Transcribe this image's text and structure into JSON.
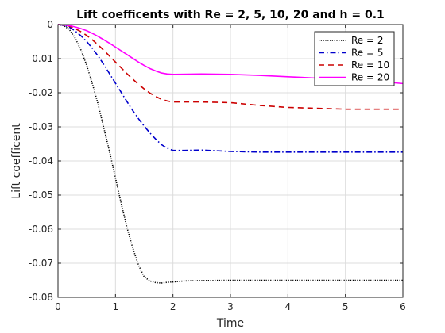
{
  "chart_data": {
    "type": "line",
    "title": "Lift coefficents with Re = 2, 5, 10, 20 and h = 0.1",
    "xlabel": "Time",
    "ylabel": "Lift coefficent",
    "xlim": [
      0,
      6
    ],
    "ylim": [
      -0.08,
      0
    ],
    "xticks": [
      0,
      1,
      2,
      3,
      4,
      5,
      6
    ],
    "xtick_labels": [
      "0",
      "1",
      "2",
      "3",
      "4",
      "5",
      "6"
    ],
    "yticks": [
      0,
      -0.01,
      -0.02,
      -0.03,
      -0.04,
      -0.05,
      -0.06,
      -0.07,
      -0.08
    ],
    "ytick_labels": [
      "0",
      "-0.01",
      "-0.02",
      "-0.03",
      "-0.04",
      "-0.05",
      "-0.06",
      "-0.07",
      "-0.08"
    ],
    "grid": true,
    "legend_position": "top-right",
    "series": [
      {
        "name": "Re = 2",
        "color": "#000000",
        "style": "dotted",
        "x": [
          0,
          0.1,
          0.2,
          0.3,
          0.4,
          0.5,
          0.6,
          0.7,
          0.8,
          0.9,
          1.0,
          1.1,
          1.2,
          1.3,
          1.4,
          1.5,
          1.6,
          1.7,
          1.8,
          1.9,
          2.0,
          2.2,
          2.5,
          3.0,
          4.0,
          5.0,
          6.0
        ],
        "y": [
          0,
          -0.0003,
          -0.0015,
          -0.004,
          -0.0075,
          -0.012,
          -0.0175,
          -0.0235,
          -0.0305,
          -0.0375,
          -0.045,
          -0.0525,
          -0.0595,
          -0.0655,
          -0.0705,
          -0.074,
          -0.0752,
          -0.0757,
          -0.0758,
          -0.0756,
          -0.0755,
          -0.0752,
          -0.0751,
          -0.075,
          -0.075,
          -0.075,
          -0.075
        ]
      },
      {
        "name": "Re = 5",
        "color": "#0000cc",
        "style": "dashdot",
        "x": [
          0,
          0.1,
          0.2,
          0.3,
          0.4,
          0.5,
          0.6,
          0.7,
          0.8,
          0.9,
          1.0,
          1.1,
          1.2,
          1.3,
          1.4,
          1.5,
          1.6,
          1.7,
          1.8,
          1.9,
          2.0,
          2.2,
          2.5,
          3.0,
          3.5,
          4.0,
          5.0,
          6.0
        ],
        "y": [
          0,
          -0.0002,
          -0.0008,
          -0.0019,
          -0.0033,
          -0.005,
          -0.007,
          -0.0093,
          -0.0118,
          -0.0145,
          -0.0172,
          -0.0199,
          -0.0226,
          -0.0252,
          -0.0276,
          -0.0298,
          -0.0318,
          -0.0336,
          -0.0352,
          -0.0363,
          -0.0369,
          -0.0369,
          -0.0368,
          -0.0372,
          -0.0374,
          -0.0374,
          -0.0374,
          -0.0374
        ]
      },
      {
        "name": "Re = 10",
        "color": "#cc0000",
        "style": "dashed",
        "x": [
          0,
          0.1,
          0.2,
          0.3,
          0.4,
          0.5,
          0.6,
          0.7,
          0.8,
          0.9,
          1.0,
          1.1,
          1.2,
          1.3,
          1.4,
          1.5,
          1.6,
          1.7,
          1.8,
          1.9,
          2.0,
          2.5,
          3.0,
          3.5,
          4.0,
          5.0,
          6.0
        ],
        "y": [
          0,
          -0.0001,
          -0.0005,
          -0.0012,
          -0.0021,
          -0.0032,
          -0.0045,
          -0.006,
          -0.0076,
          -0.0093,
          -0.011,
          -0.0127,
          -0.0144,
          -0.016,
          -0.0175,
          -0.0189,
          -0.0201,
          -0.0211,
          -0.0219,
          -0.0224,
          -0.0227,
          -0.0227,
          -0.0229,
          -0.0237,
          -0.0243,
          -0.0248,
          -0.0248
        ]
      },
      {
        "name": "Re = 20",
        "color": "#ff00ff",
        "style": "solid",
        "x": [
          0,
          0.1,
          0.2,
          0.3,
          0.4,
          0.5,
          0.6,
          0.7,
          0.8,
          0.9,
          1.0,
          1.1,
          1.2,
          1.3,
          1.4,
          1.5,
          1.6,
          1.7,
          1.8,
          1.9,
          2.0,
          2.5,
          3.0,
          3.5,
          4.0,
          4.5,
          5.0,
          5.5,
          6.0
        ],
        "y": [
          0,
          -0.0001,
          -0.0003,
          -0.0007,
          -0.0012,
          -0.0018,
          -0.0026,
          -0.0035,
          -0.0045,
          -0.0055,
          -0.0066,
          -0.0077,
          -0.0088,
          -0.0099,
          -0.011,
          -0.012,
          -0.0129,
          -0.0136,
          -0.0142,
          -0.0145,
          -0.0146,
          -0.0145,
          -0.0146,
          -0.0149,
          -0.0153,
          -0.0157,
          -0.016,
          -0.0166,
          -0.0173
        ]
      }
    ]
  }
}
